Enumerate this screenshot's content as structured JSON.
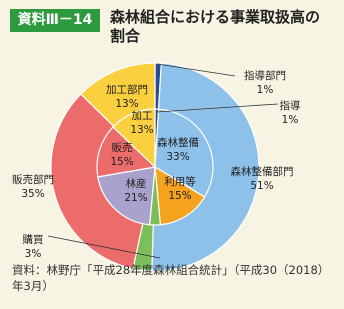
{
  "chart_data": {
    "type": "pie",
    "badge": "資料Ⅲ－14",
    "title": "森林組合における事業取扱高の割合",
    "source": "資料：林野庁「平成28年度森林組合統計」（平成30（2018）年3月）",
    "rings": [
      {
        "categories": [
          "指導部門",
          "森林整備部門",
          "購買",
          "販売部門",
          "加工部門"
        ],
        "values": [
          1,
          51,
          3,
          35,
          13
        ],
        "value_labels": [
          "1%",
          "51%",
          "3%",
          "35%",
          "13%"
        ],
        "colors": [
          "#2b4a98",
          "#8ec1ea",
          "#7cbf5a",
          "#ec6b6b",
          "#fbd03e"
        ]
      },
      {
        "categories": [
          "指導",
          "森林整備",
          "利用等",
          null,
          "林産",
          "販売",
          "加工"
        ],
        "values": [
          1,
          33,
          15,
          3,
          21,
          15,
          13
        ],
        "value_labels": [
          "1%",
          "33%",
          "15%",
          null,
          "21%",
          "15%",
          "13%"
        ],
        "colors": [
          "#2b4a98",
          "#8ec1ea",
          "#f5a21f",
          "#7cbf5a",
          "#a9a2cc",
          "#ec6b6b",
          "#fbd03e"
        ]
      }
    ]
  }
}
